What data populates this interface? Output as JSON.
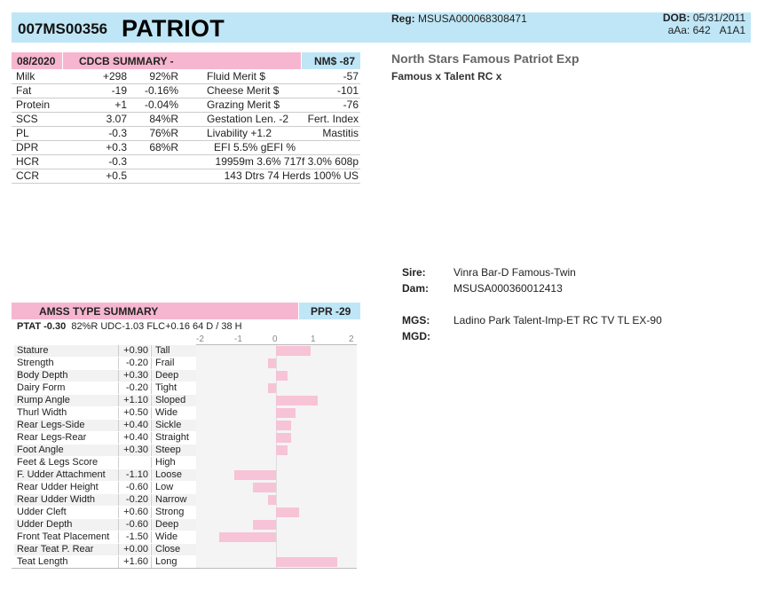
{
  "header": {
    "reg_id": "007MS00356",
    "name": "PATRIOT",
    "reg_label": "Reg:",
    "reg_value": "MSUSA000068308471",
    "dob_label": "DOB:",
    "dob_value": "05/31/2011",
    "aaa_label": "aAa:",
    "aaa_value": "642",
    "haplotype": "A1A1"
  },
  "cdcb": {
    "date": "08/2020",
    "title": "CDCB SUMMARY -",
    "nm_label": "NM$ -87",
    "rows": [
      [
        "Milk",
        "+298",
        "92%R",
        "Fluid Merit $",
        "-57"
      ],
      [
        "Fat",
        "-19",
        "-0.16%",
        "Cheese Merit $",
        "-101"
      ],
      [
        "Protein",
        "+1",
        "-0.04%",
        "Grazing Merit $",
        "-76"
      ],
      [
        "SCS",
        "3.07",
        "84%R",
        "Gestation Len. -2",
        "Fert. Index"
      ],
      [
        "PL",
        "-0.3",
        "76%R",
        "Livability   +1.2",
        "Mastitis"
      ],
      [
        "DPR",
        "+0.3",
        "68%R",
        "EFI  5.5%    gEFI  %",
        ""
      ],
      [
        "HCR",
        "-0.3",
        "",
        "19959m  3.6%  717f  3.0%  608p",
        ""
      ],
      [
        "CCR",
        "+0.5",
        "",
        "143 Dtrs  74 Herds  100% US",
        ""
      ]
    ]
  },
  "info": {
    "title": "North Stars Famous Patriot Exp",
    "cross": "Famous x Talent RC x"
  },
  "pedigree": {
    "sire_label": "Sire:",
    "sire": "Vinra Bar-D Famous-Twin",
    "dam_label": "Dam:",
    "dam": "MSUSA000360012413",
    "mgs_label": "MGS:",
    "mgs": "Ladino Park Talent-Imp-ET RC TV TL EX-90",
    "mgd_label": "MGD:",
    "mgd": ""
  },
  "type": {
    "title": "AMSS TYPE SUMMARY",
    "ppr": "PPR -29",
    "ptat_label": "PTAT -0.30",
    "summary": "82%R   UDC-1.03   FLC+0.16    64 D /  38 H",
    "scale": [
      "-2",
      "-1",
      "0",
      "1",
      "2"
    ],
    "accent_color": "#f7c3d6",
    "traits": [
      {
        "name": "Stature",
        "value": "+0.90",
        "desc": "Tall",
        "v": 0.9
      },
      {
        "name": "Strength",
        "value": "-0.20",
        "desc": "Frail",
        "v": -0.2
      },
      {
        "name": "Body Depth",
        "value": "+0.30",
        "desc": "Deep",
        "v": 0.3
      },
      {
        "name": "Dairy Form",
        "value": "-0.20",
        "desc": "Tight",
        "v": -0.2
      },
      {
        "name": "Rump Angle",
        "value": "+1.10",
        "desc": "Sloped",
        "v": 1.1
      },
      {
        "name": "Thurl Width",
        "value": "+0.50",
        "desc": "Wide",
        "v": 0.5
      },
      {
        "name": "Rear Legs-Side",
        "value": "+0.40",
        "desc": "Sickle",
        "v": 0.4
      },
      {
        "name": "Rear Legs-Rear",
        "value": "+0.40",
        "desc": "Straight",
        "v": 0.4
      },
      {
        "name": "Foot Angle",
        "value": "+0.30",
        "desc": "Steep",
        "v": 0.3
      },
      {
        "name": "Feet & Legs Score",
        "value": "",
        "desc": "High",
        "v": 0
      },
      {
        "name": "F. Udder Attachment",
        "value": "-1.10",
        "desc": "Loose",
        "v": -1.1
      },
      {
        "name": "Rear Udder Height",
        "value": "-0.60",
        "desc": "Low",
        "v": -0.6
      },
      {
        "name": "Rear Udder Width",
        "value": "-0.20",
        "desc": "Narrow",
        "v": -0.2
      },
      {
        "name": "Udder Cleft",
        "value": "+0.60",
        "desc": "Strong",
        "v": 0.6
      },
      {
        "name": "Udder Depth",
        "value": "-0.60",
        "desc": "Deep",
        "v": -0.6
      },
      {
        "name": "Front Teat Placement",
        "value": "-1.50",
        "desc": "Wide",
        "v": -1.5
      },
      {
        "name": "Rear Teat P. Rear",
        "value": "+0.00",
        "desc": "Close",
        "v": 0
      },
      {
        "name": "Teat Length",
        "value": "+1.60",
        "desc": "Long",
        "v": 1.6
      }
    ]
  }
}
